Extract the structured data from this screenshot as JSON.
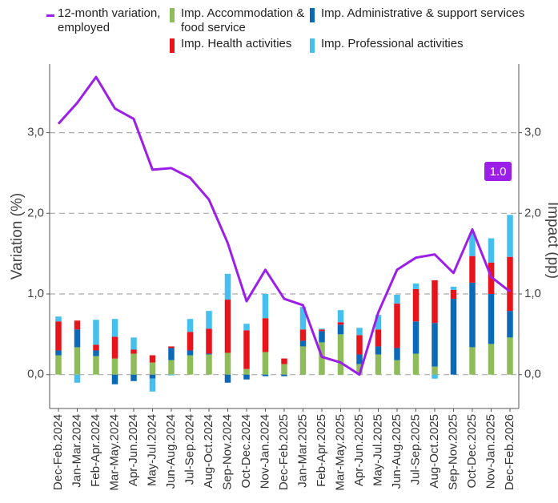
{
  "chart_data": {
    "type": "bar",
    "y_label": "Variation (%)",
    "y2_label": "Impact (pp)",
    "annotation": "1.0",
    "categories": [
      "Dec-Feb.2024",
      "Jan-Mar.2024",
      "Feb-Apr.2024",
      "Mar-May.2024",
      "Apr-Jun.2024",
      "May-Jul.2024",
      "Jun-Aug.2024",
      "Jul-Sep.2024",
      "Aug-Oct.2024",
      "Sep-Nov.2024",
      "Oct-Dec.2024",
      "Nov-Jan.2024",
      "Dec-Feb.2025",
      "Jan-Mar.2025",
      "Feb-Apr.2025",
      "Mar-May.2025",
      "Apr-Jun.2025",
      "May-Jul.2025",
      "Jun-Aug.2025",
      "Jul-Sep.2025",
      "Aug-Oct.2025",
      "Sep-Nov.2025",
      "Oct-Dec.2025",
      "Nov-Jan.2025",
      "Dec-Feb.2026"
    ],
    "series": [
      {
        "name": "12-month variation, employed",
        "type": "line",
        "color": "#9b1fe8",
        "values": [
          3.11,
          3.37,
          3.69,
          3.3,
          3.17,
          2.54,
          2.56,
          2.44,
          2.17,
          1.63,
          0.91,
          1.3,
          0.94,
          0.86,
          0.22,
          0.15,
          0.0,
          0.77,
          1.3,
          1.45,
          1.49,
          1.26,
          1.8,
          1.21,
          1.03
        ]
      },
      {
        "name": "Imp. Accommodation & food service",
        "type": "bar",
        "axis": "y2",
        "color": "#8fbc5a",
        "values": [
          0.24,
          0.34,
          0.23,
          0.2,
          0.26,
          0.15,
          0.18,
          0.24,
          0.25,
          0.27,
          0.07,
          0.28,
          0.13,
          0.35,
          0.4,
          0.5,
          0.13,
          0.25,
          0.18,
          0.26,
          0.1,
          0.0,
          0.34,
          0.38,
          0.46
        ]
      },
      {
        "name": "Imp. Administrative & support services",
        "type": "bar",
        "axis": "y2",
        "color": "#0a6ab8",
        "values": [
          0.06,
          0.22,
          0.07,
          -0.12,
          -0.08,
          -0.05,
          0.15,
          0.06,
          0.01,
          -0.1,
          -0.06,
          -0.02,
          -0.02,
          0.07,
          0.14,
          0.12,
          0.12,
          0.1,
          0.15,
          0.4,
          0.54,
          0.94,
          0.8,
          0.62,
          0.33
        ]
      },
      {
        "name": "Imp. Health activities",
        "type": "bar",
        "axis": "y2",
        "color": "#e8141c",
        "values": [
          0.36,
          0.11,
          0.07,
          0.27,
          0.05,
          0.09,
          0.02,
          0.23,
          0.31,
          0.66,
          0.48,
          0.42,
          0.07,
          0.14,
          0.02,
          0.03,
          0.24,
          0.21,
          0.55,
          0.4,
          0.53,
          0.11,
          0.33,
          0.39,
          0.67
        ]
      },
      {
        "name": "Imp. Professional activities",
        "type": "bar",
        "axis": "y2",
        "color": "#45c0ee",
        "values": [
          0.06,
          -0.1,
          0.31,
          0.22,
          0.15,
          -0.16,
          -0.01,
          0.16,
          0.22,
          0.32,
          0.08,
          0.3,
          0.0,
          0.28,
          0.01,
          0.15,
          0.09,
          0.18,
          0.11,
          0.07,
          -0.05,
          0.04,
          0.29,
          0.3,
          0.52
        ]
      }
    ],
    "ylim": [
      -0.42,
      3.85
    ],
    "yticks": [
      {
        "value": 0,
        "label": "0,0"
      },
      {
        "value": 1,
        "label": "1,0"
      },
      {
        "value": 2,
        "label": "2,0"
      },
      {
        "value": 3,
        "label": "3,0"
      }
    ],
    "y2lim": [
      -0.42,
      3.85
    ],
    "y2ticks": [
      {
        "value": 0,
        "label": "0,0"
      },
      {
        "value": 1,
        "label": "1,0"
      },
      {
        "value": 2,
        "label": "2,0"
      },
      {
        "value": 3,
        "label": "3,0"
      }
    ],
    "grid": true
  }
}
